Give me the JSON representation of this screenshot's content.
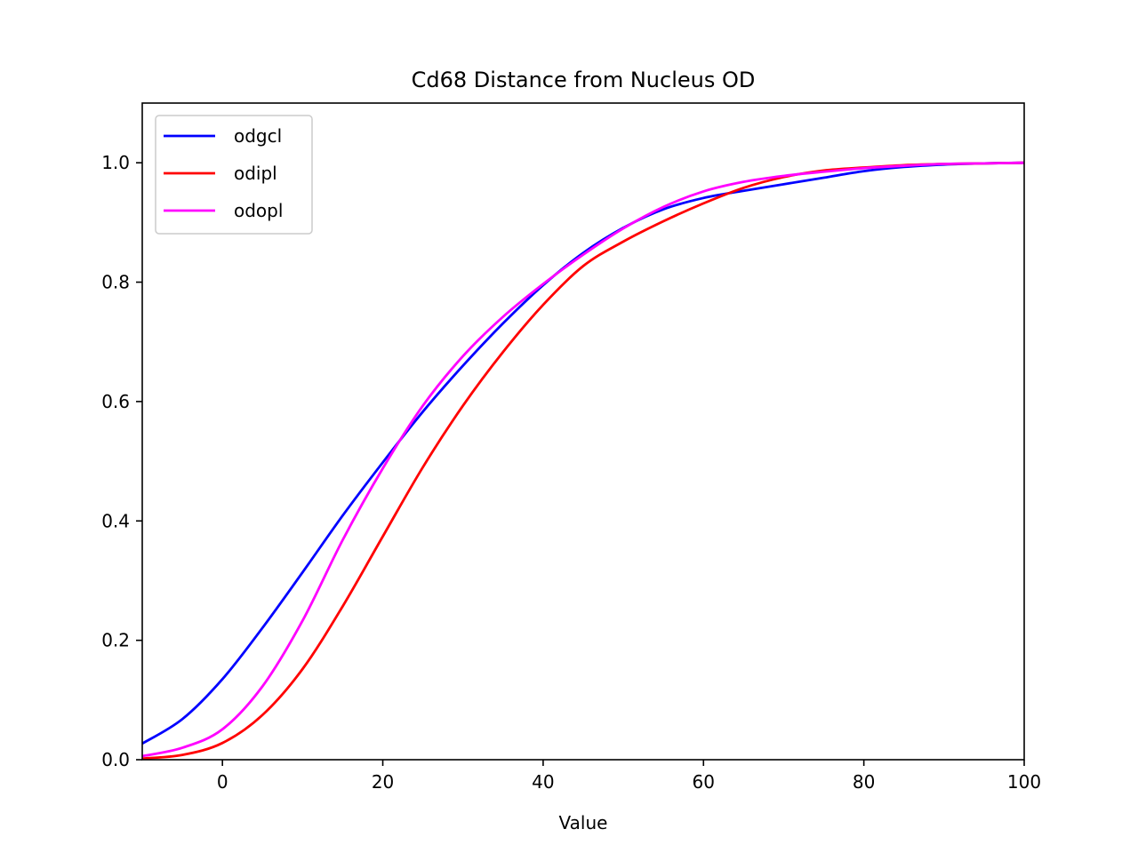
{
  "chart_data": {
    "type": "line",
    "title": "Cd68 Distance from Nucleus OD",
    "xlabel": "Value",
    "ylabel": "",
    "xlim": [
      -10,
      100
    ],
    "ylim": [
      0,
      1.1
    ],
    "xticks": [
      0,
      20,
      40,
      60,
      80,
      100
    ],
    "yticks": [
      0.0,
      0.2,
      0.4,
      0.6,
      0.8,
      1.0
    ],
    "xtick_labels": [
      "0",
      "20",
      "40",
      "60",
      "80",
      "100"
    ],
    "ytick_labels": [
      "0.0",
      "0.2",
      "0.4",
      "0.6",
      "0.8",
      "1.0"
    ],
    "grid": false,
    "legend_position": "top-left",
    "x": [
      -10,
      -5,
      0,
      5,
      10,
      15,
      20,
      25,
      30,
      35,
      40,
      45,
      50,
      55,
      60,
      65,
      70,
      75,
      80,
      85,
      90,
      95,
      100
    ],
    "series": [
      {
        "name": "odgcl",
        "color": "#0000ff",
        "values": [
          0.027,
          0.068,
          0.135,
          0.221,
          0.314,
          0.409,
          0.498,
          0.583,
          0.66,
          0.731,
          0.795,
          0.849,
          0.891,
          0.922,
          0.941,
          0.953,
          0.964,
          0.975,
          0.986,
          0.993,
          0.997,
          0.999,
          1.0
        ]
      },
      {
        "name": "odipl",
        "color": "#ff0000",
        "values": [
          0.002,
          0.008,
          0.028,
          0.075,
          0.152,
          0.257,
          0.374,
          0.49,
          0.593,
          0.683,
          0.762,
          0.827,
          0.868,
          0.902,
          0.932,
          0.958,
          0.976,
          0.987,
          0.992,
          0.996,
          0.998,
          0.999,
          1.0
        ]
      },
      {
        "name": "odopl",
        "color": "#ff00ff",
        "values": [
          0.006,
          0.02,
          0.051,
          0.123,
          0.233,
          0.368,
          0.488,
          0.593,
          0.676,
          0.742,
          0.797,
          0.846,
          0.89,
          0.926,
          0.952,
          0.968,
          0.978,
          0.985,
          0.991,
          0.995,
          0.998,
          0.999,
          1.0
        ]
      }
    ]
  }
}
